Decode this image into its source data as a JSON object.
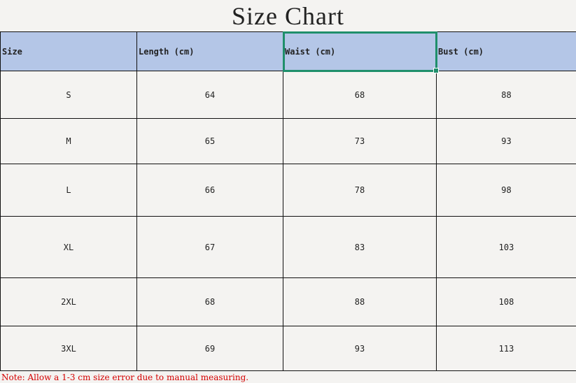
{
  "title": "Size Chart",
  "columns": [
    "Size",
    "Length (cm)",
    "Waist (cm)",
    "Bust (cm)"
  ],
  "rows": [
    [
      "S",
      "64",
      "68",
      "88"
    ],
    [
      "M",
      "65",
      "73",
      "93"
    ],
    [
      "L",
      "66",
      "78",
      "98"
    ],
    [
      "XL",
      "67",
      "83",
      "103"
    ],
    [
      "2XL",
      "68",
      "88",
      "108"
    ],
    [
      "3XL",
      "69",
      "93",
      "113"
    ]
  ],
  "selected_cell": "Waist (cm)",
  "note": "Note: Allow a 1-3 cm size error due to manual measuring.",
  "colors": {
    "header_bg": "#b4c6e7",
    "selection": "#1f8f6b",
    "note": "#d40000"
  }
}
